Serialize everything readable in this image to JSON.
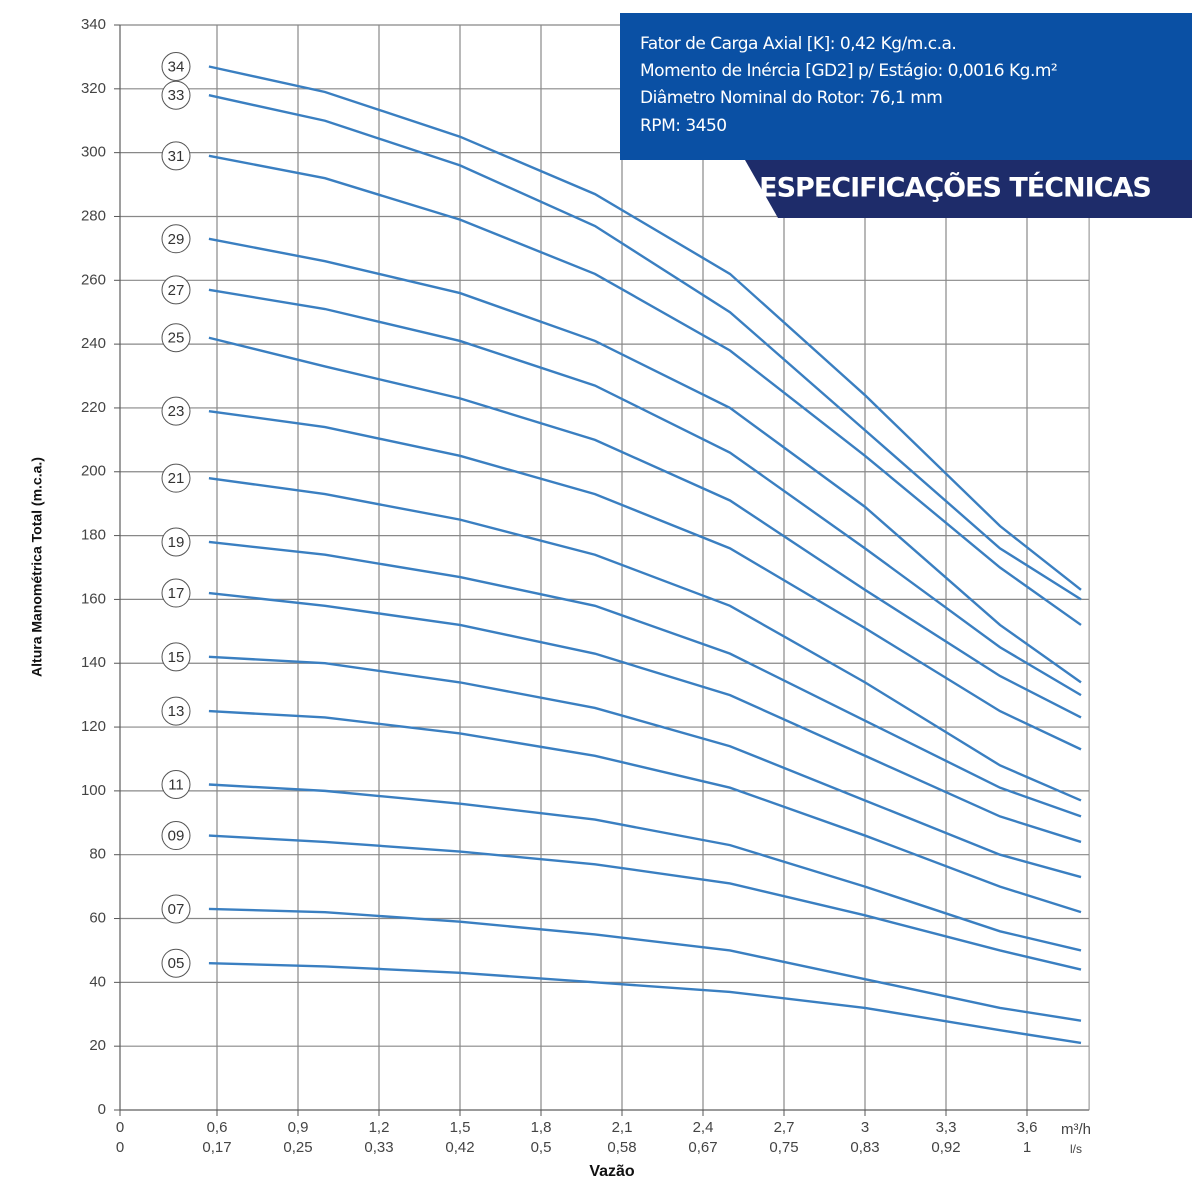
{
  "chart_data": {
    "type": "line",
    "y_label": "Altura Manométrica Total (m.c.a.)",
    "x_label": "Vazão",
    "x_unit": "m³/h",
    "x2_unit": "l/s",
    "color": "#3a7fc1",
    "grid": true,
    "x": [
      0.55,
      1.0,
      1.5,
      2.0,
      2.5,
      3.0,
      3.5,
      3.8
    ],
    "series": [
      {
        "name": "34",
        "values": [
          327,
          319,
          305,
          287,
          262,
          224,
          183,
          163
        ]
      },
      {
        "name": "33",
        "values": [
          318,
          310,
          296,
          277,
          250,
          213,
          176,
          160
        ]
      },
      {
        "name": "31",
        "values": [
          299,
          292,
          279,
          262,
          238,
          205,
          170,
          152
        ]
      },
      {
        "name": "29",
        "values": [
          273,
          266,
          256,
          241,
          220,
          189,
          152,
          134
        ]
      },
      {
        "name": "27",
        "values": [
          257,
          251,
          241,
          227,
          206,
          176,
          145,
          130
        ]
      },
      {
        "name": "25",
        "values": [
          242,
          233,
          223,
          210,
          191,
          163,
          136,
          123
        ]
      },
      {
        "name": "23",
        "values": [
          219,
          214,
          205,
          193,
          176,
          151,
          125,
          113
        ]
      },
      {
        "name": "21",
        "values": [
          198,
          193,
          185,
          174,
          158,
          134,
          108,
          97
        ]
      },
      {
        "name": "19",
        "values": [
          178,
          174,
          167,
          158,
          143,
          122,
          101,
          92
        ]
      },
      {
        "name": "17",
        "values": [
          162,
          158,
          152,
          143,
          130,
          111,
          92,
          84
        ]
      },
      {
        "name": "15",
        "values": [
          142,
          140,
          134,
          126,
          114,
          97,
          80,
          73
        ]
      },
      {
        "name": "13",
        "values": [
          125,
          123,
          118,
          111,
          101,
          86,
          70,
          62
        ]
      },
      {
        "name": "11",
        "values": [
          102,
          100,
          96,
          91,
          83,
          70,
          56,
          50
        ]
      },
      {
        "name": "09",
        "values": [
          86,
          84,
          81,
          77,
          71,
          61,
          50,
          44
        ]
      },
      {
        "name": "07",
        "values": [
          63,
          62,
          59,
          55,
          50,
          41,
          32,
          28
        ]
      },
      {
        "name": "05",
        "values": [
          46,
          45,
          43,
          40,
          37,
          32,
          25,
          21
        ]
      }
    ],
    "xlim": [
      0,
      3.83
    ],
    "ylim": [
      0,
      340
    ],
    "xticks": [
      0,
      {
        "value": 0.6,
        "label": "0,6"
      },
      {
        "value": 0.9,
        "label": "0,9"
      },
      {
        "value": 1.2,
        "label": "1,2"
      },
      {
        "value": 1.5,
        "label": "1,5"
      },
      {
        "value": 1.8,
        "label": "1,8"
      },
      {
        "value": 2.1,
        "label": "2,1"
      },
      {
        "value": 2.4,
        "label": "2,4"
      },
      {
        "value": 2.7,
        "label": "2,7"
      },
      3,
      {
        "value": 3.3,
        "label": "3,3"
      },
      {
        "value": 3.6,
        "label": "3,6"
      }
    ],
    "x2ticks": [
      0,
      {
        "value": 0.17,
        "label": "0,17"
      },
      {
        "value": 0.25,
        "label": "0,25"
      },
      {
        "value": 0.33,
        "label": "0,33"
      },
      {
        "value": 0.42,
        "label": "0,42"
      },
      {
        "value": 0.5,
        "label": "0,5"
      },
      {
        "value": 0.58,
        "label": "0,58"
      },
      {
        "value": 0.67,
        "label": "0,67"
      },
      {
        "value": 0.75,
        "label": "0,75"
      },
      {
        "value": 0.83,
        "label": "0,83"
      },
      {
        "value": 0.92,
        "label": "0,92"
      },
      1
    ],
    "yticks": [
      0,
      20,
      40,
      60,
      80,
      100,
      120,
      140,
      160,
      180,
      200,
      220,
      240,
      260,
      280,
      300,
      320,
      340
    ],
    "specs": {
      "lines": [
        "Fator de Carga Axial [K]: 0,42 Kg/m.c.a.",
        "Momento de Inércia [GD2] p/ Estágio: 0,0016 Kg.m²",
        "Diâmetro Nominal do Rotor: 76,1 mm",
        "RPM: 3450"
      ],
      "title": "ESPECIFICAÇÕES TÉCNICAS"
    }
  }
}
